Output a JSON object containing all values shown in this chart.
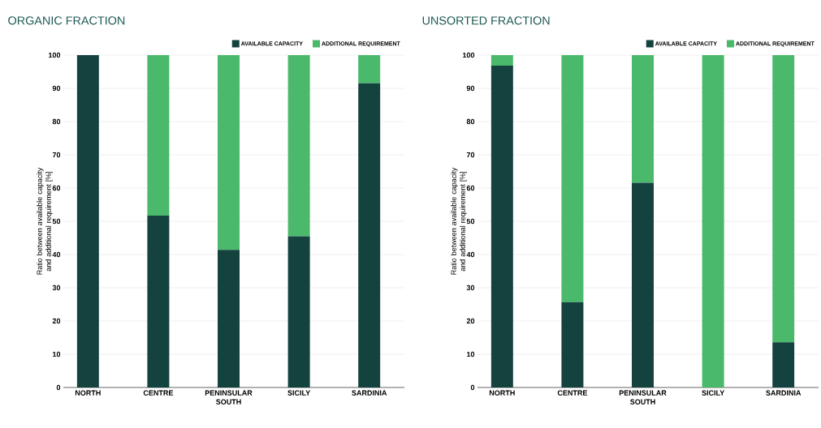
{
  "chart_data": [
    {
      "type": "bar",
      "stacked": true,
      "title": "ORGANIC FRACTION",
      "ylabel": "Ratio between available capacity and additional requirement [%]",
      "categories": [
        "NORTH",
        "CENTRE",
        "PENINSULAR SOUTH",
        "SICILY",
        "SARDINIA"
      ],
      "series": [
        {
          "name": "AVAILABLE CAPACITY",
          "color": "#13423f",
          "values": [
            100,
            51.7,
            41.4,
            45.5,
            91.5
          ]
        },
        {
          "name": "ADDITIONAL REQUIREMENT",
          "color": "#4ab96c",
          "values": [
            0,
            48.3,
            58.6,
            54.5,
            8.5
          ]
        }
      ],
      "ylim": [
        0,
        100
      ],
      "yticks": [
        0,
        10,
        20,
        30,
        40,
        50,
        60,
        70,
        80,
        90,
        100
      ],
      "grid": "y",
      "legend": "top right"
    },
    {
      "type": "bar",
      "stacked": true,
      "title": "UNSORTED FRACTION",
      "ylabel": "Ratio between available capacity and additional requirement [%]",
      "categories": [
        "NORTH",
        "CENTRE",
        "PENINSULAR SOUTH",
        "SICILY",
        "SARDINIA"
      ],
      "series": [
        {
          "name": "AVAILABLE CAPACITY",
          "color": "#13423f",
          "values": [
            96.8,
            25.7,
            61.6,
            0,
            13.6
          ]
        },
        {
          "name": "ADDITIONAL REQUIREMENT",
          "color": "#4ab96c",
          "values": [
            3.2,
            74.3,
            38.4,
            100,
            86.4
          ]
        }
      ],
      "ylim": [
        0,
        100
      ],
      "yticks": [
        0,
        10,
        20,
        30,
        40,
        50,
        60,
        70,
        80,
        90,
        100
      ],
      "grid": "y",
      "legend": "top right"
    }
  ]
}
